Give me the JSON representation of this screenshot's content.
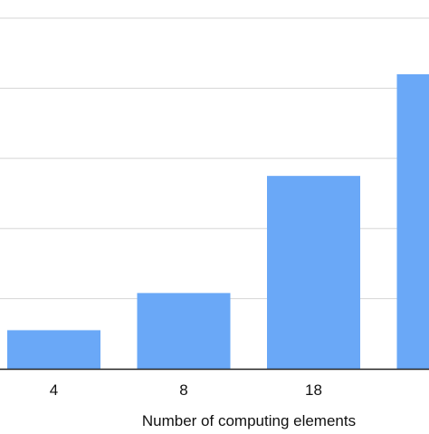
{
  "chart_data": {
    "type": "bar",
    "categories": [
      "4",
      "8",
      "18",
      ""
    ],
    "values": [
      0.55,
      1.08,
      2.75,
      4.2
    ],
    "xlabel": "Number of computing elements",
    "ylabel": "",
    "ylim": [
      0,
      5
    ],
    "grid": true,
    "legend": "none",
    "colors": {
      "bar": "#6aa8f7",
      "grid": "#d6d6d6",
      "axis": "#222222",
      "text": "#111111"
    }
  }
}
